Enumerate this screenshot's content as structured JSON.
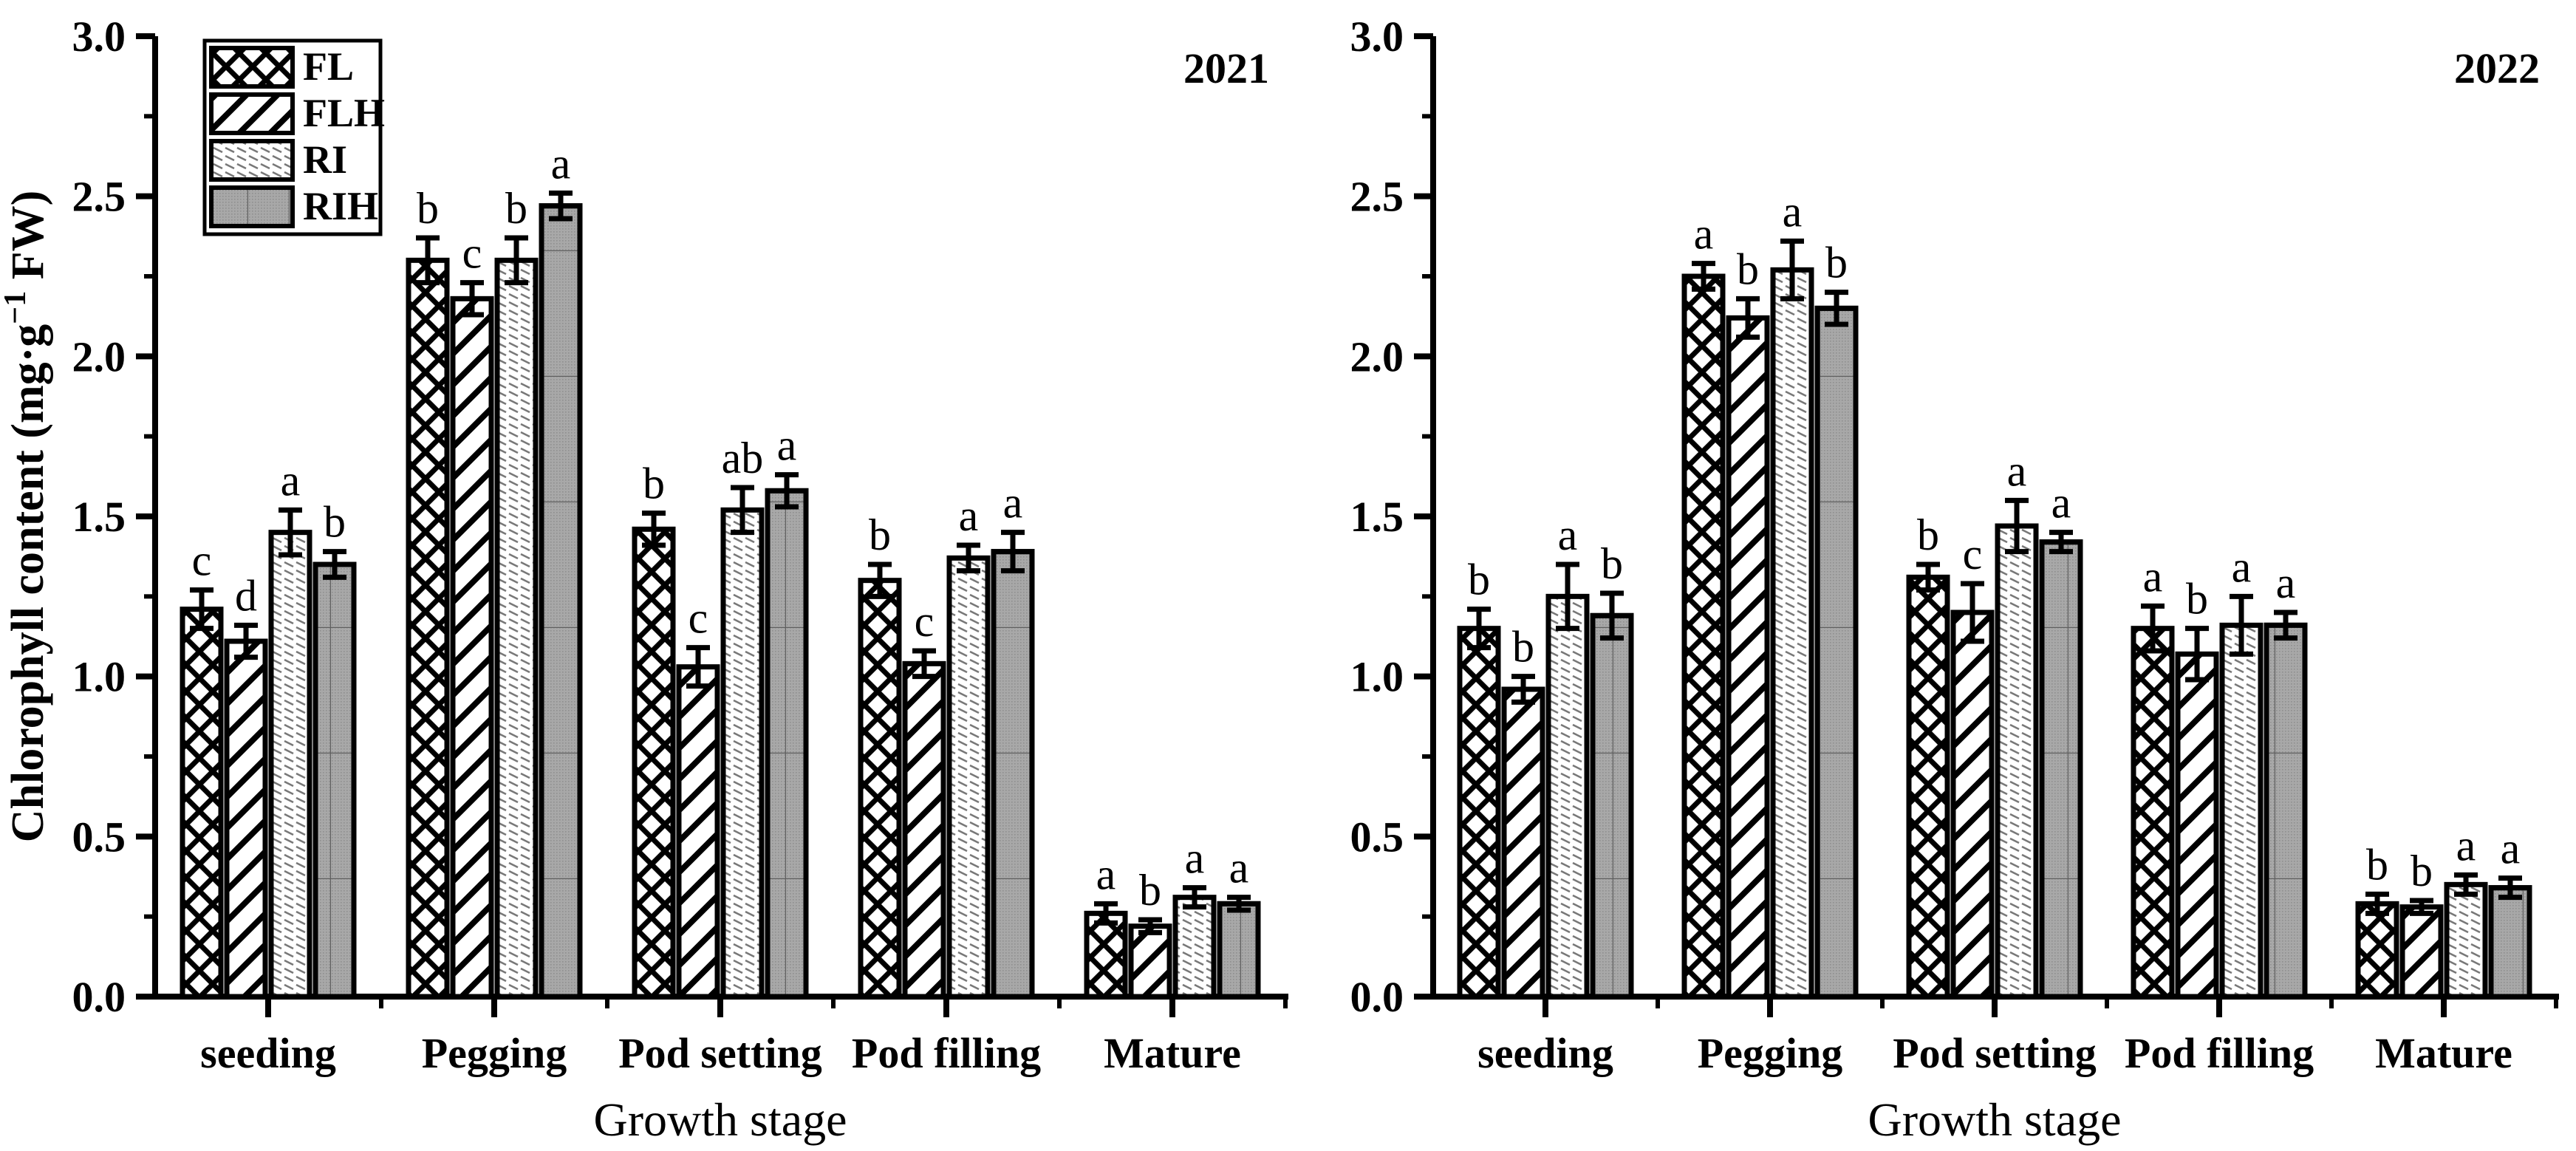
{
  "figure_title": "Chlorophyll content by growth stage, 2021 and 2022",
  "colors": {
    "foreground": "#000000",
    "ri_hatch": "#787878",
    "rih_fill": "#a8a8a8",
    "rih_dot": "#8f8f8f",
    "rih_grid": "#5f5f5f",
    "background": "#ffffff"
  },
  "legend": {
    "items": [
      {
        "key": "FL",
        "label": "FL",
        "pattern": "crosshatch"
      },
      {
        "key": "FLH",
        "label": "FLH",
        "pattern": "diagonal"
      },
      {
        "key": "RI",
        "label": "RI",
        "pattern": "fine-hatch"
      },
      {
        "key": "RIH",
        "label": "RIH",
        "pattern": "gray-dots"
      }
    ]
  },
  "chart_data": [
    {
      "type": "bar",
      "year_label": "2021",
      "xlabel": "Growth stage",
      "ylabel_pre": "Chlorophyll content (mg·g",
      "ylabel_sup": "−1",
      "ylabel_post": " FW)",
      "ylim": [
        0,
        3
      ],
      "y_major_step": 0.5,
      "y_minor_step": 0.25,
      "y_tick_labels": [
        "0.0",
        "0.5",
        "1.0",
        "1.5",
        "2.0",
        "2.5",
        "3.0"
      ],
      "categories": [
        "seeding",
        "Pegging",
        "Pod setting",
        "Pod filling",
        "Mature"
      ],
      "series": [
        {
          "name": "FL",
          "values": [
            1.21,
            2.3,
            1.46,
            1.3,
            0.26
          ],
          "errors": [
            0.06,
            0.07,
            0.05,
            0.05,
            0.03
          ],
          "letters": [
            "c",
            "b",
            "b",
            "b",
            "a"
          ]
        },
        {
          "name": "FLH",
          "values": [
            1.11,
            2.18,
            1.03,
            1.04,
            0.22
          ],
          "errors": [
            0.05,
            0.05,
            0.06,
            0.04,
            0.02
          ],
          "letters": [
            "d",
            "c",
            "c",
            "c",
            "b"
          ]
        },
        {
          "name": "RI",
          "values": [
            1.45,
            2.3,
            1.52,
            1.37,
            0.31
          ],
          "errors": [
            0.07,
            0.07,
            0.07,
            0.04,
            0.03
          ],
          "letters": [
            "a",
            "b",
            "ab",
            "a",
            "a"
          ]
        },
        {
          "name": "RIH",
          "values": [
            1.35,
            2.47,
            1.58,
            1.39,
            0.29
          ],
          "errors": [
            0.04,
            0.04,
            0.05,
            0.06,
            0.02
          ],
          "letters": [
            "b",
            "a",
            "a",
            "a",
            "a"
          ]
        }
      ],
      "legend_visible": true
    },
    {
      "type": "bar",
      "year_label": "2022",
      "xlabel": "Growth stage",
      "ylabel_pre": "",
      "ylabel_sup": "",
      "ylabel_post": "",
      "ylim": [
        0,
        3
      ],
      "y_major_step": 0.5,
      "y_minor_step": 0.25,
      "y_tick_labels": [
        "0.0",
        "0.5",
        "1.0",
        "1.5",
        "2.0",
        "2.5",
        "3.0"
      ],
      "categories": [
        "seeding",
        "Pegging",
        "Pod setting",
        "Pod filling",
        "Mature"
      ],
      "series": [
        {
          "name": "FL",
          "values": [
            1.15,
            2.25,
            1.31,
            1.15,
            0.29
          ],
          "errors": [
            0.06,
            0.04,
            0.04,
            0.07,
            0.03
          ],
          "letters": [
            "b",
            "a",
            "b",
            "a",
            "b"
          ]
        },
        {
          "name": "FLH",
          "values": [
            0.96,
            2.12,
            1.2,
            1.07,
            0.28
          ],
          "errors": [
            0.04,
            0.06,
            0.09,
            0.08,
            0.02
          ],
          "letters": [
            "b",
            "b",
            "c",
            "b",
            "b"
          ]
        },
        {
          "name": "RI",
          "values": [
            1.25,
            2.27,
            1.47,
            1.16,
            0.35
          ],
          "errors": [
            0.1,
            0.09,
            0.08,
            0.09,
            0.03
          ],
          "letters": [
            "a",
            "a",
            "a",
            "a",
            "a"
          ]
        },
        {
          "name": "RIH",
          "values": [
            1.19,
            2.15,
            1.42,
            1.16,
            0.34
          ],
          "errors": [
            0.07,
            0.05,
            0.03,
            0.04,
            0.03
          ],
          "letters": [
            "b",
            "b",
            "a",
            "a",
            "a"
          ]
        }
      ],
      "legend_visible": false
    }
  ]
}
